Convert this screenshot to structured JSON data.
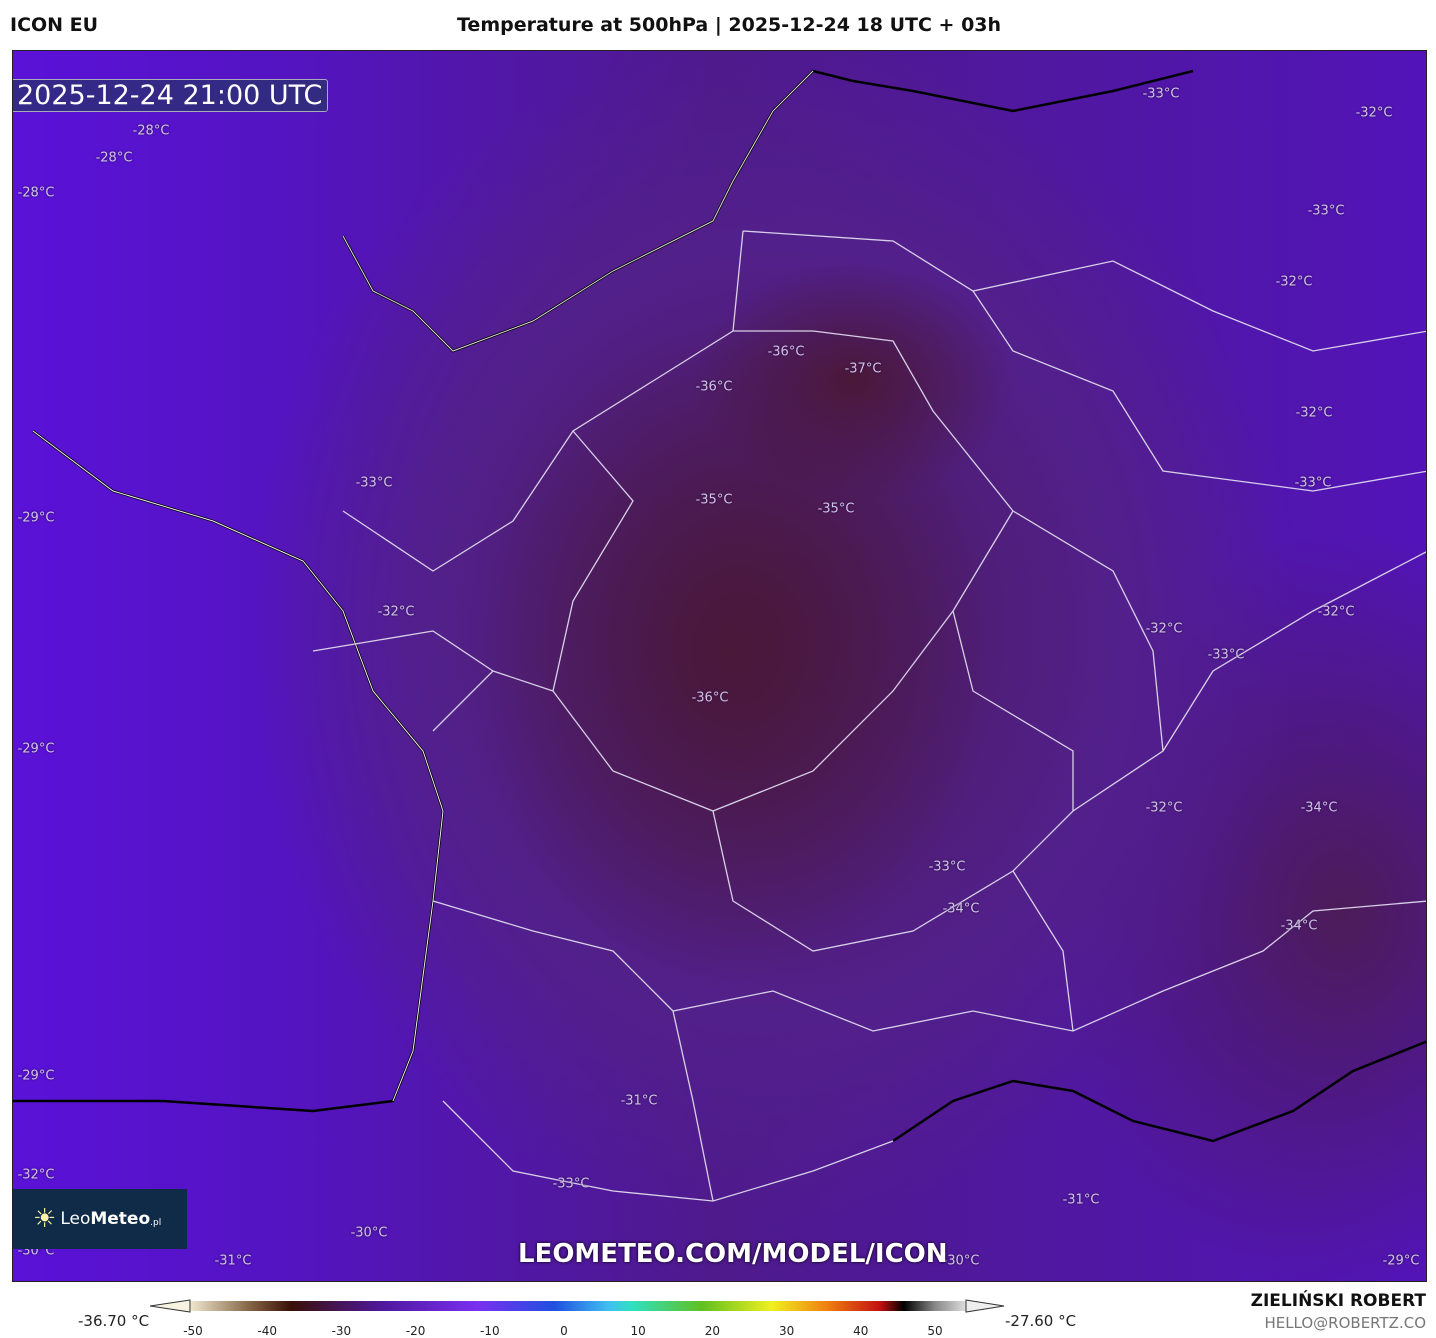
{
  "header": {
    "model": "ICON EU",
    "title": "Temperature at 500hPa | 2025-12-24 18 UTC + 03h"
  },
  "map": {
    "timestamp": "2025-12-24 21:00 UTC",
    "watermark": "LEOMETEO.COM/MODEL/ICON",
    "logo": {
      "text_light": "Leo",
      "text_bold": "Meteo",
      "suffix": ".pl"
    },
    "contour_labels": [
      "-28°C",
      "-28°C",
      "-28°C",
      "-33°C",
      "-32°C",
      "-33°C",
      "-32°C",
      "-36°C",
      "-37°C",
      "-36°C",
      "-32°C",
      "-33°C",
      "-33°C",
      "-29°C",
      "-35°C",
      "-35°C",
      "-32°C",
      "-32°C",
      "-32°C",
      "-33°C",
      "-36°C",
      "-29°C",
      "-32°C",
      "-34°C",
      "-33°C",
      "-34°C",
      "-34°C",
      "-29°C",
      "-31°C",
      "-32°C",
      "-33°C",
      "-31°C",
      "-30°C",
      "-30°C",
      "-31°C",
      "-30°C",
      "-29°C"
    ]
  },
  "colorbar": {
    "min_label": "-36.70 °C",
    "max_label": "-27.60 °C",
    "ticks": [
      "-50",
      "-40",
      "-30",
      "-20",
      "-10",
      "0",
      "10",
      "20",
      "30",
      "40",
      "50"
    ]
  },
  "credits": {
    "author": "ZIELIŃSKI ROBERT",
    "email": "HELLO@ROBERTZ.CO"
  }
}
